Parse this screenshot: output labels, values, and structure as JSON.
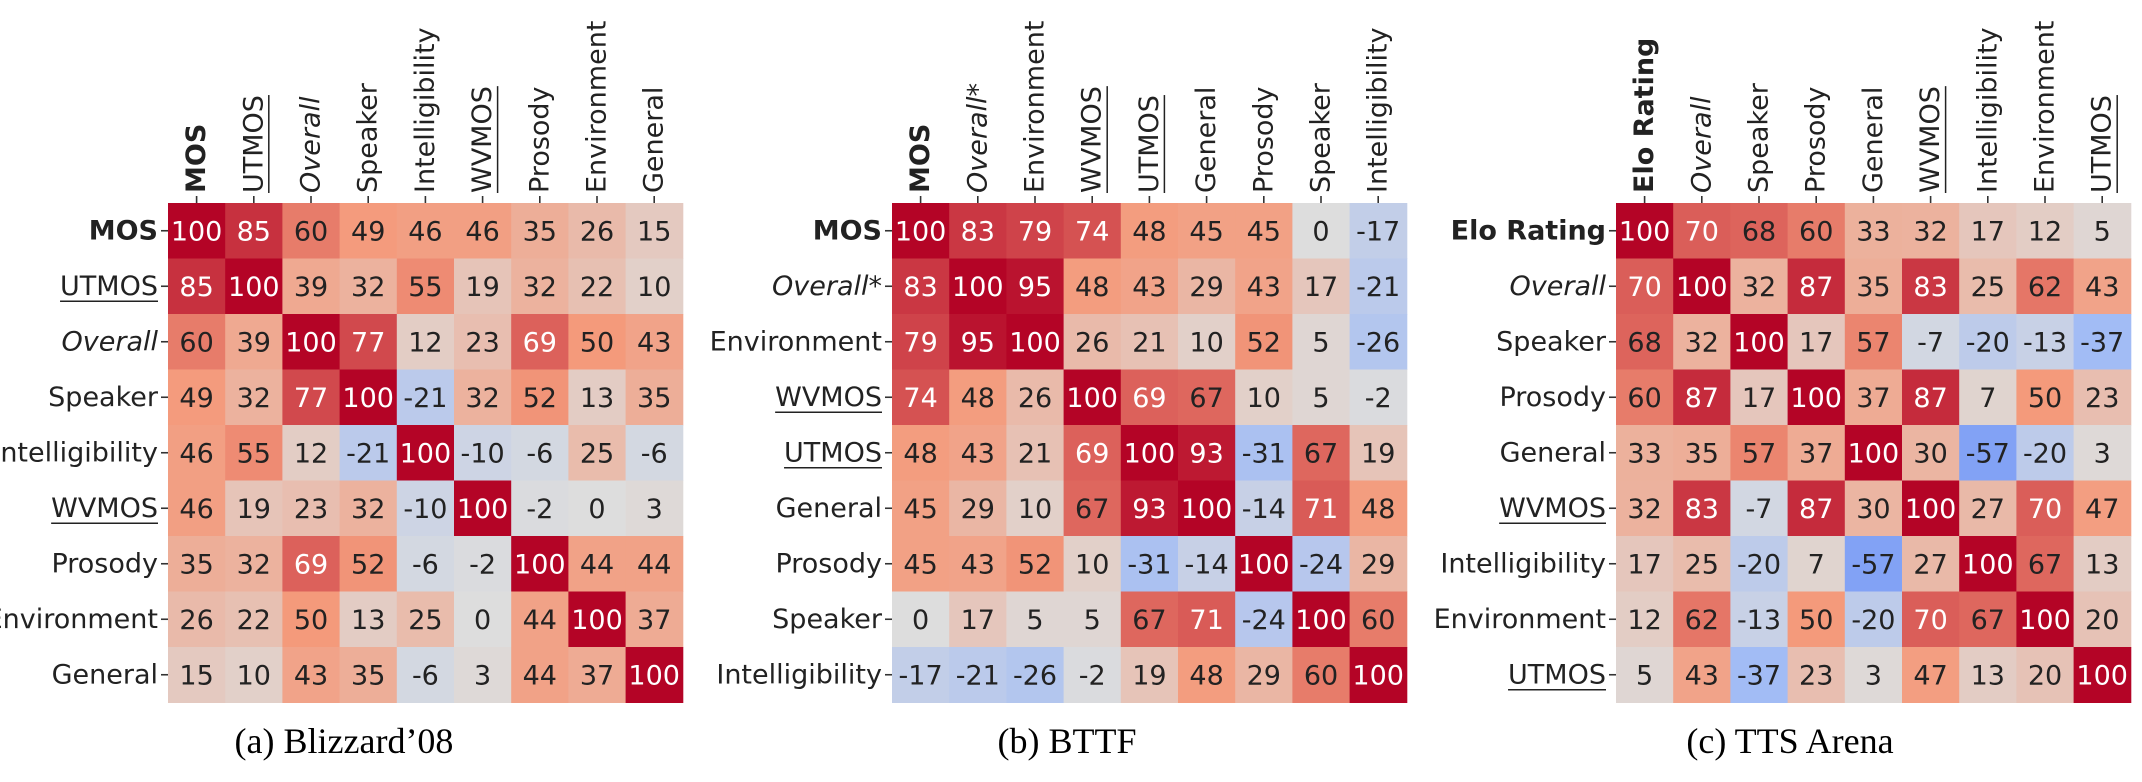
{
  "chart_data": [
    {
      "type": "heatmap",
      "caption": "(a) Blizzard’08",
      "labels": [
        {
          "text": "MOS",
          "style": "bold"
        },
        {
          "text": "UTMOS",
          "style": "underline"
        },
        {
          "text": "Overall",
          "style": "italic"
        },
        {
          "text": "Speaker",
          "style": "normal"
        },
        {
          "text": "Intelligibility",
          "style": "normal"
        },
        {
          "text": "WVMOS",
          "style": "underline"
        },
        {
          "text": "Prosody",
          "style": "normal"
        },
        {
          "text": "Environment",
          "style": "normal"
        },
        {
          "text": "General",
          "style": "normal"
        }
      ],
      "values": [
        [
          100,
          85,
          60,
          49,
          46,
          46,
          35,
          26,
          15
        ],
        [
          85,
          100,
          39,
          32,
          55,
          19,
          32,
          22,
          10
        ],
        [
          60,
          39,
          100,
          77,
          12,
          23,
          69,
          50,
          43
        ],
        [
          49,
          32,
          77,
          100,
          -21,
          32,
          52,
          13,
          35
        ],
        [
          46,
          55,
          12,
          -21,
          100,
          -10,
          -6,
          25,
          -6
        ],
        [
          46,
          19,
          23,
          32,
          -10,
          100,
          -2,
          0,
          3
        ],
        [
          35,
          32,
          69,
          52,
          -6,
          -2,
          100,
          44,
          44
        ],
        [
          26,
          22,
          50,
          13,
          25,
          0,
          44,
          100,
          37
        ],
        [
          15,
          10,
          43,
          35,
          -6,
          3,
          44,
          37,
          100
        ]
      ],
      "colormap": "coolwarm",
      "vmin": -100,
      "vmax": 100
    },
    {
      "type": "heatmap",
      "caption": "(b) BTTF",
      "labels": [
        {
          "text": "MOS",
          "style": "bold"
        },
        {
          "text": "Overall*",
          "style": "italic"
        },
        {
          "text": "Environment",
          "style": "normal"
        },
        {
          "text": "WVMOS",
          "style": "underline"
        },
        {
          "text": "UTMOS",
          "style": "underline"
        },
        {
          "text": "General",
          "style": "normal"
        },
        {
          "text": "Prosody",
          "style": "normal"
        },
        {
          "text": "Speaker",
          "style": "normal"
        },
        {
          "text": "Intelligibility",
          "style": "normal"
        }
      ],
      "values": [
        [
          100,
          83,
          79,
          74,
          48,
          45,
          45,
          0,
          -17
        ],
        [
          83,
          100,
          95,
          48,
          43,
          29,
          43,
          17,
          -21
        ],
        [
          79,
          95,
          100,
          26,
          21,
          10,
          52,
          5,
          -26
        ],
        [
          74,
          48,
          26,
          100,
          69,
          67,
          10,
          5,
          -2
        ],
        [
          48,
          43,
          21,
          69,
          100,
          93,
          -31,
          67,
          19
        ],
        [
          45,
          29,
          10,
          67,
          93,
          100,
          -14,
          71,
          48
        ],
        [
          45,
          43,
          52,
          10,
          -31,
          -14,
          100,
          -24,
          29
        ],
        [
          0,
          17,
          5,
          5,
          67,
          71,
          -24,
          100,
          60
        ],
        [
          -17,
          -21,
          -26,
          -2,
          19,
          48,
          29,
          60,
          100
        ]
      ],
      "colormap": "coolwarm",
      "vmin": -100,
      "vmax": 100
    },
    {
      "type": "heatmap",
      "caption": "(c) TTS Arena",
      "labels": [
        {
          "text": "Elo Rating",
          "style": "bold"
        },
        {
          "text": "Overall",
          "style": "italic"
        },
        {
          "text": "Speaker",
          "style": "normal"
        },
        {
          "text": "Prosody",
          "style": "normal"
        },
        {
          "text": "General",
          "style": "normal"
        },
        {
          "text": "WVMOS",
          "style": "underline"
        },
        {
          "text": "Intelligibility",
          "style": "normal"
        },
        {
          "text": "Environment",
          "style": "normal"
        },
        {
          "text": "UTMOS",
          "style": "underline"
        }
      ],
      "values": [
        [
          100,
          70,
          68,
          60,
          33,
          32,
          17,
          12,
          5
        ],
        [
          70,
          100,
          32,
          87,
          35,
          83,
          25,
          62,
          43
        ],
        [
          68,
          32,
          100,
          17,
          57,
          -7,
          -20,
          -13,
          -37
        ],
        [
          60,
          87,
          17,
          100,
          37,
          87,
          7,
          50,
          23
        ],
        [
          33,
          35,
          57,
          37,
          100,
          30,
          -57,
          -20,
          3
        ],
        [
          32,
          83,
          -7,
          87,
          30,
          100,
          27,
          70,
          47
        ],
        [
          17,
          25,
          -20,
          7,
          -57,
          27,
          100,
          67,
          13
        ],
        [
          12,
          62,
          -13,
          50,
          -20,
          70,
          67,
          100,
          20
        ],
        [
          5,
          43,
          -37,
          23,
          3,
          47,
          13,
          20,
          100
        ]
      ],
      "colormap": "coolwarm",
      "vmin": -100,
      "vmax": 100
    }
  ]
}
